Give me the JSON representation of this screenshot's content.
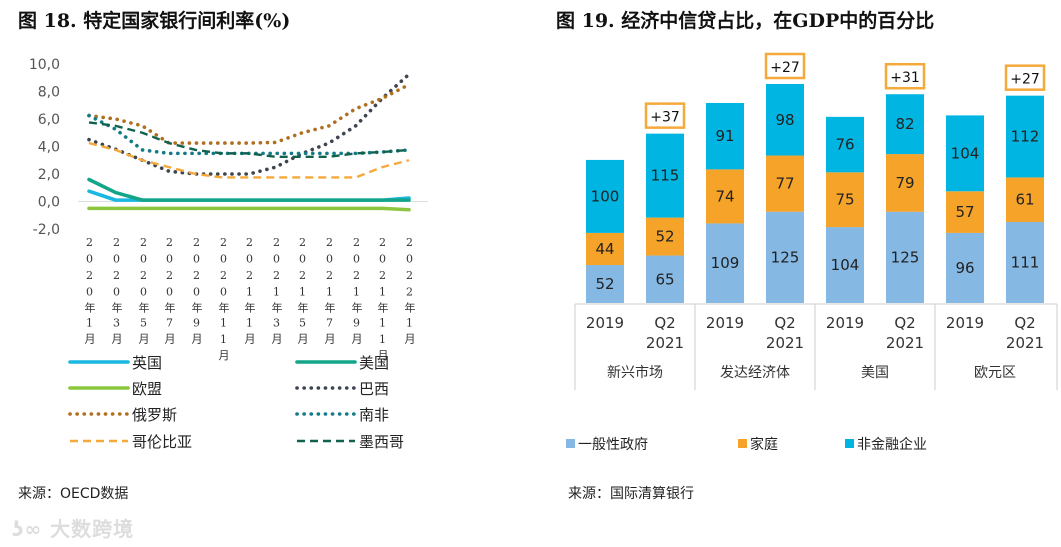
{
  "left": {
    "title": "图 18. 特定国家银行间利率(%)",
    "source": "来源：OECD数据",
    "watermark": "大数跨境",
    "chart_data": {
      "type": "line",
      "title": "图 18. 特定国家银行间利率(%)",
      "x": [
        "2020年1月",
        "2020年3月",
        "2020年5月",
        "2020年7月",
        "2020年9月",
        "2020年11月",
        "2021年1月",
        "2021年3月",
        "2021年5月",
        "2021年7月",
        "2021年9月",
        "2021年11月",
        "2022年1月"
      ],
      "y_ticks": [
        "10,0",
        "8,0",
        "6,0",
        "4,0",
        "2,0",
        "0,0",
        "-2,0"
      ],
      "ylim": [
        -2,
        10
      ],
      "grid": false,
      "legend": "bottom",
      "series": [
        {
          "name": "英国",
          "color": "#1ab8e0",
          "style": "solid",
          "values": [
            0.75,
            0.1,
            0.1,
            0.1,
            0.1,
            0.1,
            0.1,
            0.1,
            0.1,
            0.1,
            0.1,
            0.1,
            0.25
          ]
        },
        {
          "name": "美国",
          "color": "#12a58a",
          "style": "solid",
          "values": [
            1.6,
            0.65,
            0.1,
            0.1,
            0.1,
            0.1,
            0.1,
            0.1,
            0.1,
            0.1,
            0.1,
            0.1,
            0.1
          ]
        },
        {
          "name": "欧盟",
          "color": "#8cc63f",
          "style": "solid",
          "values": [
            -0.5,
            -0.5,
            -0.5,
            -0.5,
            -0.5,
            -0.5,
            -0.5,
            -0.5,
            -0.5,
            -0.5,
            -0.5,
            -0.5,
            -0.6
          ]
        },
        {
          "name": "巴西",
          "color": "#3d4450",
          "style": "dotted",
          "values": [
            4.5,
            3.8,
            3.0,
            2.2,
            2.0,
            2.0,
            2.0,
            2.5,
            3.5,
            4.25,
            5.5,
            7.5,
            9.25
          ]
        },
        {
          "name": "俄罗斯",
          "color": "#b06f1e",
          "style": "dotted",
          "values": [
            6.25,
            6.0,
            5.5,
            4.25,
            4.25,
            4.25,
            4.25,
            4.3,
            5.0,
            5.5,
            6.75,
            7.5,
            8.5
          ]
        },
        {
          "name": "南非",
          "color": "#127b87",
          "style": "dotted",
          "values": [
            6.25,
            5.25,
            3.75,
            3.5,
            3.5,
            3.5,
            3.5,
            3.5,
            3.5,
            3.5,
            3.5,
            3.6,
            3.75
          ]
        },
        {
          "name": "哥伦比亚",
          "color": "#f5a93b",
          "style": "dashed",
          "values": [
            4.25,
            3.75,
            3.0,
            2.5,
            2.0,
            1.75,
            1.75,
            1.75,
            1.75,
            1.75,
            1.75,
            2.5,
            3.0
          ]
        },
        {
          "name": "墨西哥",
          "color": "#11614f",
          "style": "dashed",
          "values": [
            5.75,
            5.5,
            5.0,
            4.25,
            3.75,
            3.5,
            3.5,
            3.25,
            3.25,
            3.25,
            3.5,
            3.6,
            3.75
          ]
        }
      ]
    }
  },
  "right": {
    "title": "图 19. 经济中信贷占比，在GDP中的百分比",
    "source": "来源：国际清算银行",
    "chart_data": {
      "type": "bar",
      "stacked": true,
      "title": "图 19. 经济中信贷占比，在GDP中的百分比",
      "groups": [
        "新兴市场",
        "发达经济体",
        "美国",
        "欧元区"
      ],
      "categories": [
        "2019",
        "Q2 2021",
        "2019",
        "Q2 2021",
        "2019",
        "Q2 2021",
        "2019",
        "Q2 2021"
      ],
      "category_lines": [
        [
          "2019"
        ],
        [
          "Q2",
          "2021"
        ],
        [
          "2019"
        ],
        [
          "Q2",
          "2021"
        ],
        [
          "2019"
        ],
        [
          "Q2",
          "2021"
        ],
        [
          "2019"
        ],
        [
          "Q2",
          "2021"
        ]
      ],
      "legend": "bottom",
      "series": [
        {
          "name": "一般性政府",
          "color": "#85b8e3",
          "values": [
            52,
            65,
            109,
            125,
            104,
            125,
            96,
            111
          ]
        },
        {
          "name": "家庭",
          "color": "#f6a32a",
          "values": [
            44,
            52,
            74,
            77,
            75,
            79,
            57,
            61
          ]
        },
        {
          "name": "非金融企业",
          "color": "#00b5e2",
          "values": [
            100,
            115,
            91,
            98,
            76,
            82,
            104,
            112
          ]
        }
      ],
      "annotations": [
        "",
        "+37",
        "",
        "+27",
        "",
        "+31",
        "",
        "+27"
      ],
      "annotation_border_color": "#f5a93b"
    }
  }
}
